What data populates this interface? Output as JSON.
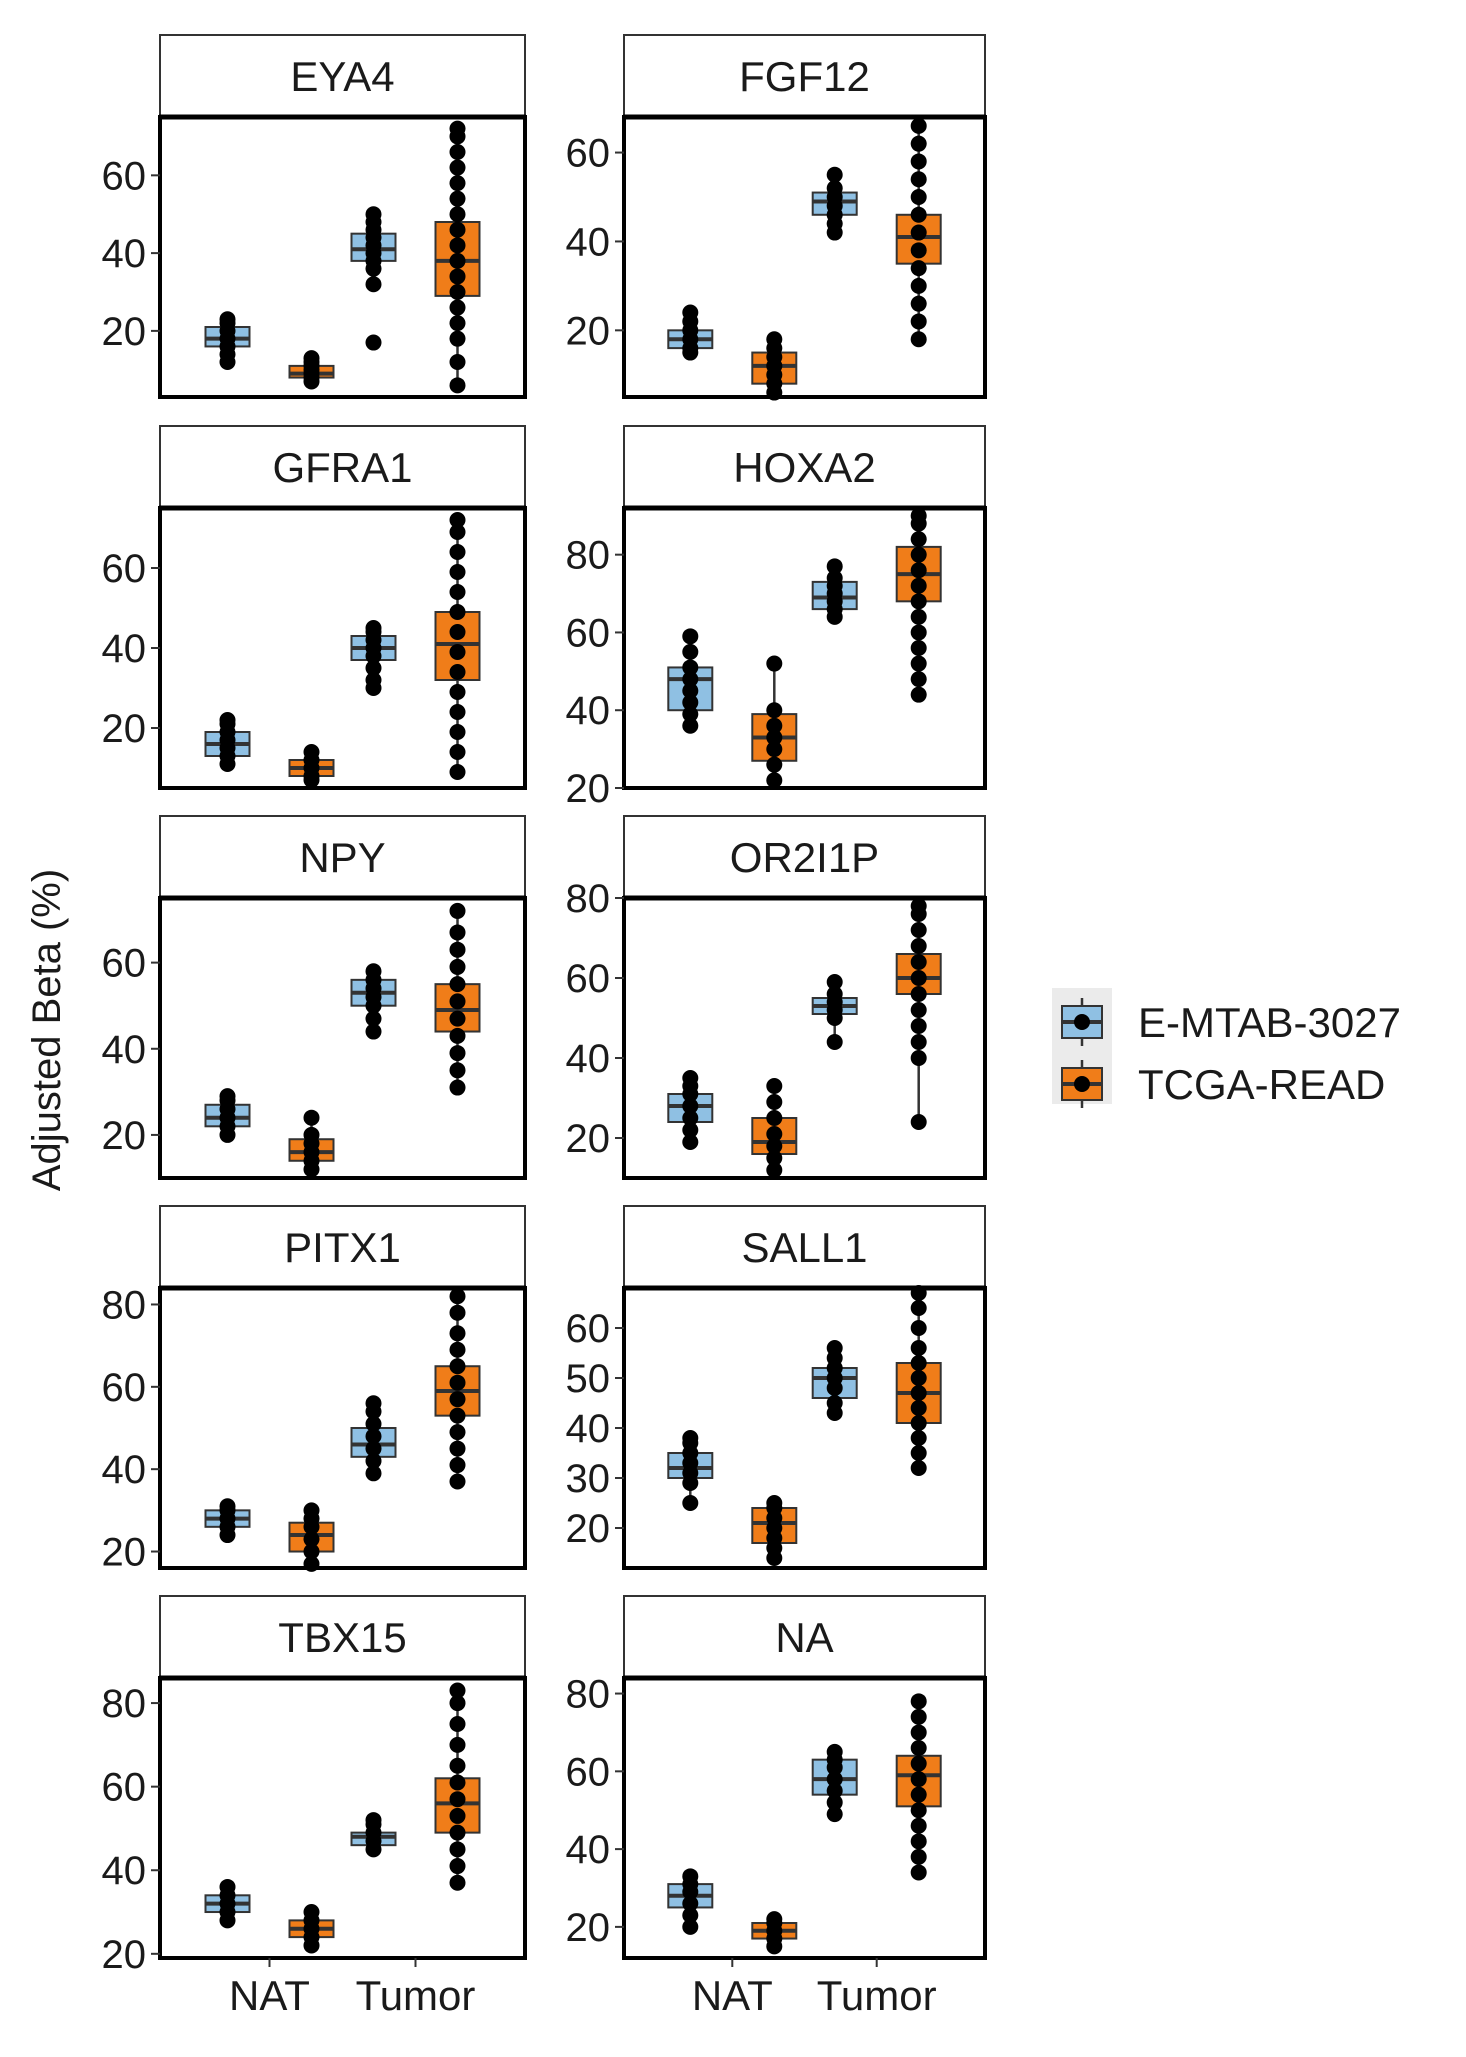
{
  "chart_data": {
    "type": "boxplot",
    "ylabel": "Adjusted Beta (%)",
    "xlabel": "",
    "categories": [
      "NAT",
      "Tumor"
    ],
    "legend": {
      "placement": "right",
      "entries": [
        {
          "name": "E-MTAB-3027",
          "color": "#8fc0e3"
        },
        {
          "name": "TCGA-READ",
          "color": "#f07d19"
        }
      ]
    },
    "panels": [
      {
        "title": "EYA4",
        "ylim": [
          3,
          75
        ],
        "yticks": [
          20,
          40,
          60
        ],
        "groups": [
          {
            "series": "E-MTAB-3027",
            "category": "NAT",
            "q1": 16,
            "median": 18,
            "q3": 21,
            "lo": 13,
            "hi": 23,
            "points": [
              12,
              14,
              16,
              18,
              20,
              22,
              23
            ]
          },
          {
            "series": "TCGA-READ",
            "category": "NAT",
            "q1": 8,
            "median": 9,
            "q3": 11,
            "lo": 7,
            "hi": 13,
            "points": [
              7,
              8,
              9,
              10,
              11,
              12,
              13
            ]
          },
          {
            "series": "E-MTAB-3027",
            "category": "Tumor",
            "q1": 38,
            "median": 41,
            "q3": 45,
            "lo": 32,
            "hi": 50,
            "points": [
              17,
              32,
              36,
              38,
              40,
              42,
              44,
              46,
              48,
              50
            ]
          },
          {
            "series": "TCGA-READ",
            "category": "Tumor",
            "q1": 29,
            "median": 38,
            "q3": 48,
            "lo": 6,
            "hi": 72,
            "points": [
              6,
              12,
              18,
              22,
              26,
              30,
              34,
              38,
              42,
              46,
              50,
              54,
              58,
              62,
              66,
              70,
              72
            ]
          }
        ]
      },
      {
        "title": "FGF12",
        "ylim": [
          5,
          68
        ],
        "yticks": [
          20,
          40,
          60
        ],
        "groups": [
          {
            "series": "E-MTAB-3027",
            "category": "NAT",
            "q1": 16,
            "median": 18,
            "q3": 20,
            "lo": 15,
            "hi": 24,
            "points": [
              15,
              16,
              18,
              20,
              22,
              24
            ]
          },
          {
            "series": "TCGA-READ",
            "category": "NAT",
            "q1": 8,
            "median": 12,
            "q3": 15,
            "lo": 6,
            "hi": 18,
            "points": [
              6,
              8,
              10,
              12,
              14,
              16,
              18
            ]
          },
          {
            "series": "E-MTAB-3027",
            "category": "Tumor",
            "q1": 46,
            "median": 49,
            "q3": 51,
            "lo": 42,
            "hi": 55,
            "points": [
              42,
              44,
              46,
              48,
              50,
              52,
              55
            ]
          },
          {
            "series": "TCGA-READ",
            "category": "Tumor",
            "q1": 35,
            "median": 41,
            "q3": 46,
            "lo": 18,
            "hi": 66,
            "points": [
              18,
              22,
              26,
              30,
              34,
              38,
              42,
              46,
              50,
              54,
              58,
              62,
              66
            ]
          }
        ]
      },
      {
        "title": "GFRA1",
        "ylim": [
          5,
          75
        ],
        "yticks": [
          20,
          40,
          60
        ],
        "groups": [
          {
            "series": "E-MTAB-3027",
            "category": "NAT",
            "q1": 13,
            "median": 16,
            "q3": 19,
            "lo": 11,
            "hi": 22,
            "points": [
              11,
              13,
              15,
              17,
              19,
              21,
              22
            ]
          },
          {
            "series": "TCGA-READ",
            "category": "NAT",
            "q1": 8,
            "median": 10,
            "q3": 12,
            "lo": 7,
            "hi": 14,
            "points": [
              7,
              8,
              10,
              12,
              14
            ]
          },
          {
            "series": "E-MTAB-3027",
            "category": "Tumor",
            "q1": 37,
            "median": 40,
            "q3": 43,
            "lo": 30,
            "hi": 45,
            "points": [
              30,
              32,
              35,
              38,
              40,
              42,
              44,
              45
            ]
          },
          {
            "series": "TCGA-READ",
            "category": "Tumor",
            "q1": 32,
            "median": 41,
            "q3": 49,
            "lo": 9,
            "hi": 72,
            "points": [
              9,
              14,
              19,
              24,
              29,
              34,
              39,
              44,
              49,
              54,
              59,
              64,
              69,
              72
            ]
          }
        ]
      },
      {
        "title": "HOXA2",
        "ylim": [
          20,
          92
        ],
        "yticks": [
          20,
          40,
          60,
          80
        ],
        "groups": [
          {
            "series": "E-MTAB-3027",
            "category": "NAT",
            "q1": 40,
            "median": 48,
            "q3": 51,
            "lo": 36,
            "hi": 59,
            "points": [
              36,
              39,
              42,
              45,
              48,
              51,
              55,
              59
            ]
          },
          {
            "series": "TCGA-READ",
            "category": "NAT",
            "q1": 27,
            "median": 33,
            "q3": 39,
            "lo": 22,
            "hi": 52,
            "points": [
              22,
              26,
              30,
              33,
              36,
              40,
              52
            ]
          },
          {
            "series": "E-MTAB-3027",
            "category": "Tumor",
            "q1": 66,
            "median": 69,
            "q3": 73,
            "lo": 64,
            "hi": 77,
            "points": [
              64,
              66,
              68,
              70,
              72,
              74,
              77
            ]
          },
          {
            "series": "TCGA-READ",
            "category": "Tumor",
            "q1": 68,
            "median": 75,
            "q3": 82,
            "lo": 44,
            "hi": 90,
            "points": [
              44,
              48,
              52,
              56,
              60,
              64,
              68,
              72,
              76,
              80,
              84,
              88,
              90
            ]
          }
        ]
      },
      {
        "title": "NPY",
        "ylim": [
          10,
          75
        ],
        "yticks": [
          20,
          40,
          60
        ],
        "groups": [
          {
            "series": "E-MTAB-3027",
            "category": "NAT",
            "q1": 22,
            "median": 24,
            "q3": 27,
            "lo": 20,
            "hi": 29,
            "points": [
              20,
              22,
              24,
              26,
              28,
              29
            ]
          },
          {
            "series": "TCGA-READ",
            "category": "NAT",
            "q1": 14,
            "median": 16,
            "q3": 19,
            "lo": 12,
            "hi": 24,
            "points": [
              12,
              14,
              16,
              18,
              20,
              24
            ]
          },
          {
            "series": "E-MTAB-3027",
            "category": "Tumor",
            "q1": 50,
            "median": 53,
            "q3": 56,
            "lo": 44,
            "hi": 58,
            "points": [
              44,
              47,
              50,
              52,
              54,
              56,
              58
            ]
          },
          {
            "series": "TCGA-READ",
            "category": "Tumor",
            "q1": 44,
            "median": 49,
            "q3": 55,
            "lo": 31,
            "hi": 72,
            "points": [
              31,
              35,
              39,
              43,
              47,
              51,
              55,
              59,
              63,
              67,
              72
            ]
          }
        ]
      },
      {
        "title": "OR2I1P",
        "ylim": [
          10,
          80
        ],
        "yticks": [
          20,
          40,
          60,
          80
        ],
        "groups": [
          {
            "series": "E-MTAB-3027",
            "category": "NAT",
            "q1": 24,
            "median": 28,
            "q3": 31,
            "lo": 19,
            "hi": 35,
            "points": [
              19,
              22,
              25,
              28,
              31,
              33,
              35
            ]
          },
          {
            "series": "TCGA-READ",
            "category": "NAT",
            "q1": 16,
            "median": 19,
            "q3": 25,
            "lo": 12,
            "hi": 33,
            "points": [
              12,
              15,
              18,
              21,
              25,
              29,
              33
            ]
          },
          {
            "series": "E-MTAB-3027",
            "category": "Tumor",
            "q1": 51,
            "median": 53,
            "q3": 55,
            "lo": 44,
            "hi": 59,
            "points": [
              44,
              50,
              52,
              54,
              56,
              59
            ]
          },
          {
            "series": "TCGA-READ",
            "category": "Tumor",
            "q1": 56,
            "median": 60,
            "q3": 66,
            "lo": 24,
            "hi": 78,
            "points": [
              24,
              40,
              44,
              48,
              52,
              56,
              60,
              64,
              68,
              72,
              76,
              78
            ]
          }
        ]
      },
      {
        "title": "PITX1",
        "ylim": [
          16,
          84
        ],
        "yticks": [
          20,
          40,
          60,
          80
        ],
        "groups": [
          {
            "series": "E-MTAB-3027",
            "category": "NAT",
            "q1": 26,
            "median": 28,
            "q3": 30,
            "lo": 24,
            "hi": 31,
            "points": [
              24,
              26,
              28,
              30,
              31
            ]
          },
          {
            "series": "TCGA-READ",
            "category": "NAT",
            "q1": 20,
            "median": 24,
            "q3": 27,
            "lo": 17,
            "hi": 30,
            "points": [
              17,
              20,
              23,
              26,
              28,
              30
            ]
          },
          {
            "series": "E-MTAB-3027",
            "category": "Tumor",
            "q1": 43,
            "median": 46,
            "q3": 50,
            "lo": 39,
            "hi": 56,
            "points": [
              39,
              42,
              45,
              48,
              51,
              54,
              56
            ]
          },
          {
            "series": "TCGA-READ",
            "category": "Tumor",
            "q1": 53,
            "median": 59,
            "q3": 65,
            "lo": 37,
            "hi": 82,
            "points": [
              37,
              41,
              45,
              49,
              53,
              57,
              61,
              65,
              69,
              73,
              78,
              82
            ]
          }
        ]
      },
      {
        "title": "SALL1",
        "ylim": [
          12,
          68
        ],
        "yticks": [
          20,
          30,
          40,
          50,
          60
        ],
        "groups": [
          {
            "series": "E-MTAB-3027",
            "category": "NAT",
            "q1": 30,
            "median": 32,
            "q3": 35,
            "lo": 25,
            "hi": 38,
            "points": [
              25,
              29,
              31,
              33,
              35,
              37,
              38
            ]
          },
          {
            "series": "TCGA-READ",
            "category": "NAT",
            "q1": 17,
            "median": 21,
            "q3": 24,
            "lo": 14,
            "hi": 25,
            "points": [
              14,
              16,
              18,
              20,
              22,
              24,
              25
            ]
          },
          {
            "series": "E-MTAB-3027",
            "category": "Tumor",
            "q1": 46,
            "median": 50,
            "q3": 52,
            "lo": 43,
            "hi": 56,
            "points": [
              43,
              45,
              48,
              50,
              52,
              54,
              56
            ]
          },
          {
            "series": "TCGA-READ",
            "category": "Tumor",
            "q1": 41,
            "median": 47,
            "q3": 53,
            "lo": 32,
            "hi": 67,
            "points": [
              32,
              35,
              38,
              41,
              44,
              47,
              50,
              53,
              56,
              60,
              64,
              67
            ]
          }
        ]
      },
      {
        "title": "TBX15",
        "ylim": [
          19,
          86
        ],
        "yticks": [
          20,
          40,
          60,
          80
        ],
        "groups": [
          {
            "series": "E-MTAB-3027",
            "category": "NAT",
            "q1": 30,
            "median": 32,
            "q3": 34,
            "lo": 28,
            "hi": 36,
            "points": [
              28,
              30,
              32,
              34,
              36
            ]
          },
          {
            "series": "TCGA-READ",
            "category": "NAT",
            "q1": 24,
            "median": 26,
            "q3": 28,
            "lo": 22,
            "hi": 30,
            "points": [
              22,
              24,
              26,
              28,
              30
            ]
          },
          {
            "series": "E-MTAB-3027",
            "category": "Tumor",
            "q1": 46,
            "median": 48,
            "q3": 49,
            "lo": 45,
            "hi": 52,
            "points": [
              45,
              47,
              49,
              51,
              52
            ]
          },
          {
            "series": "TCGA-READ",
            "category": "Tumor",
            "q1": 49,
            "median": 56,
            "q3": 62,
            "lo": 37,
            "hi": 83,
            "points": [
              37,
              41,
              45,
              49,
              53,
              57,
              61,
              65,
              70,
              75,
              80,
              83
            ]
          }
        ]
      },
      {
        "title": "NA",
        "ylim": [
          12,
          84
        ],
        "yticks": [
          20,
          40,
          60,
          80
        ],
        "groups": [
          {
            "series": "E-MTAB-3027",
            "category": "NAT",
            "q1": 25,
            "median": 28,
            "q3": 31,
            "lo": 20,
            "hi": 33,
            "points": [
              20,
              23,
              26,
              29,
              31,
              33
            ]
          },
          {
            "series": "TCGA-READ",
            "category": "NAT",
            "q1": 17,
            "median": 19,
            "q3": 21,
            "lo": 15,
            "hi": 22,
            "points": [
              15,
              17,
              19,
              21,
              22
            ]
          },
          {
            "series": "E-MTAB-3027",
            "category": "Tumor",
            "q1": 54,
            "median": 58,
            "q3": 63,
            "lo": 49,
            "hi": 65,
            "points": [
              49,
              52,
              55,
              58,
              61,
              63,
              65
            ]
          },
          {
            "series": "TCGA-READ",
            "category": "Tumor",
            "q1": 51,
            "median": 59,
            "q3": 64,
            "lo": 34,
            "hi": 78,
            "points": [
              34,
              38,
              42,
              46,
              50,
              54,
              58,
              62,
              66,
              70,
              74,
              78
            ]
          }
        ]
      }
    ]
  }
}
